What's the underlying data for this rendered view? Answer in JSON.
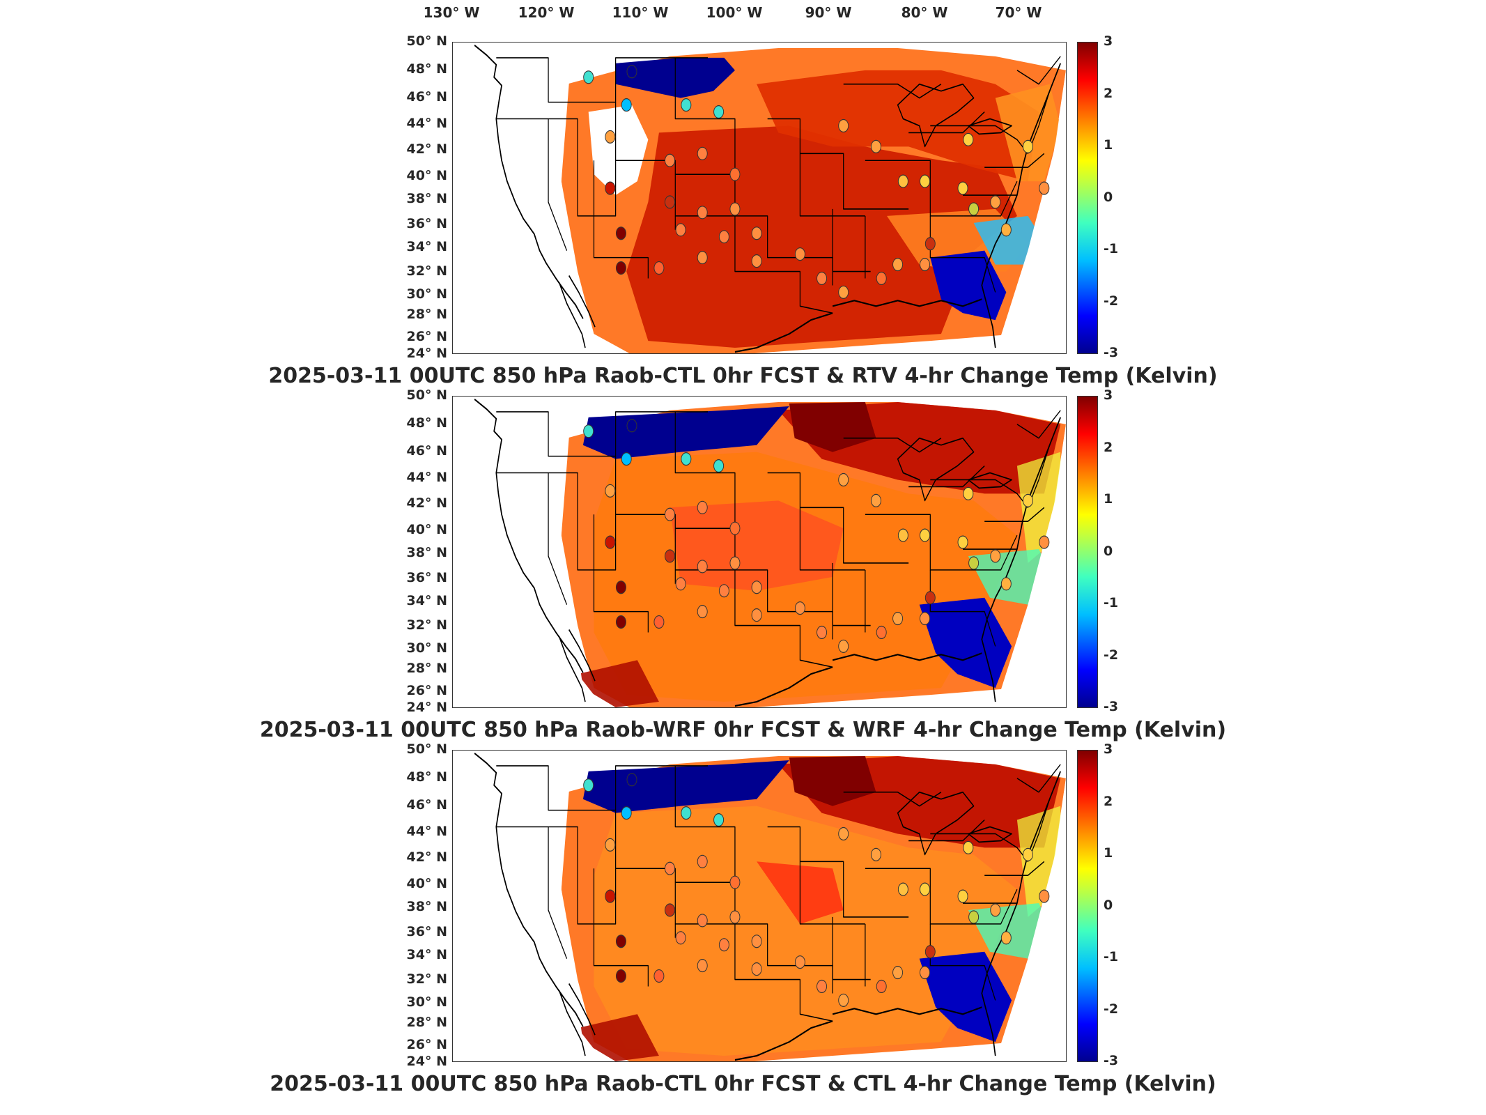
{
  "longitude_labels": [
    "130° W",
    "120° W",
    "110° W",
    "100° W",
    "90° W",
    "80° W",
    "70° W"
  ],
  "latitude_labels": [
    "50° N",
    "48° N",
    "46° N",
    "44° N",
    "42° N",
    "40° N",
    "38° N",
    "36° N",
    "34° N",
    "32° N",
    "30° N",
    "28° N",
    "26° N",
    "24° N"
  ],
  "colorbar": {
    "ticks": [
      "3",
      "2",
      "1",
      "0",
      "-1",
      "-2",
      "-3"
    ],
    "min": -3,
    "max": 3,
    "colormap": "jet"
  },
  "panels": [
    {
      "caption": "2025-03-11 00UTC 850 hPa Raob-CTL 0hr FCST & RTV 4-hr Change Temp (Kelvin)"
    },
    {
      "caption": "2025-03-11 00UTC 850 hPa Raob-WRF 0hr FCST & WRF 4-hr Change Temp (Kelvin)"
    },
    {
      "caption": "2025-03-11 00UTC 850 hPa Raob-CTL 0hr FCST & CTL 4-hr Change Temp (Kelvin)"
    }
  ],
  "colors": {
    "cold": "#00008f",
    "warm": "#c81400",
    "hot": "#800000",
    "neutral": "#ffff00"
  }
}
